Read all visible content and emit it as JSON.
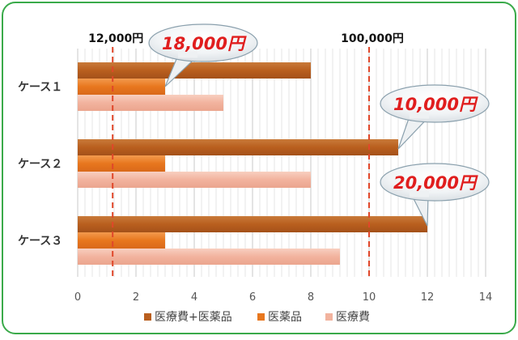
{
  "chart_data": {
    "type": "bar",
    "orientation": "horizontal",
    "categories": [
      "ケース１",
      "ケース２",
      "ケース３"
    ],
    "series": [
      {
        "name": "医療費+医薬品",
        "values": [
          8,
          11,
          12
        ]
      },
      {
        "name": "医薬品",
        "values": [
          3,
          3,
          3
        ]
      },
      {
        "name": "医療費",
        "values": [
          5,
          8,
          9
        ]
      }
    ],
    "xlim": [
      0,
      14
    ],
    "x_ticks": [
      0,
      2,
      4,
      6,
      8,
      10,
      12,
      14
    ],
    "grid": true,
    "legend": "bottom",
    "reference_lines": [
      {
        "x": 1.2,
        "label": "12,000円"
      },
      {
        "x": 10,
        "label": "100,000円"
      }
    ],
    "callouts": [
      {
        "text": "18,000円",
        "category_index": 0,
        "value": 3
      },
      {
        "text": "10,000円",
        "category_index": 1,
        "value": 11
      },
      {
        "text": "20,000円",
        "category_index": 2,
        "value": 12
      }
    ],
    "colors": {
      "series": [
        "#b95f1e",
        "#e8771e",
        "#f2b39e"
      ],
      "frame": "#3aaa4a",
      "reference_line": "#e0472a",
      "callout_text": "#e01e1e"
    }
  }
}
